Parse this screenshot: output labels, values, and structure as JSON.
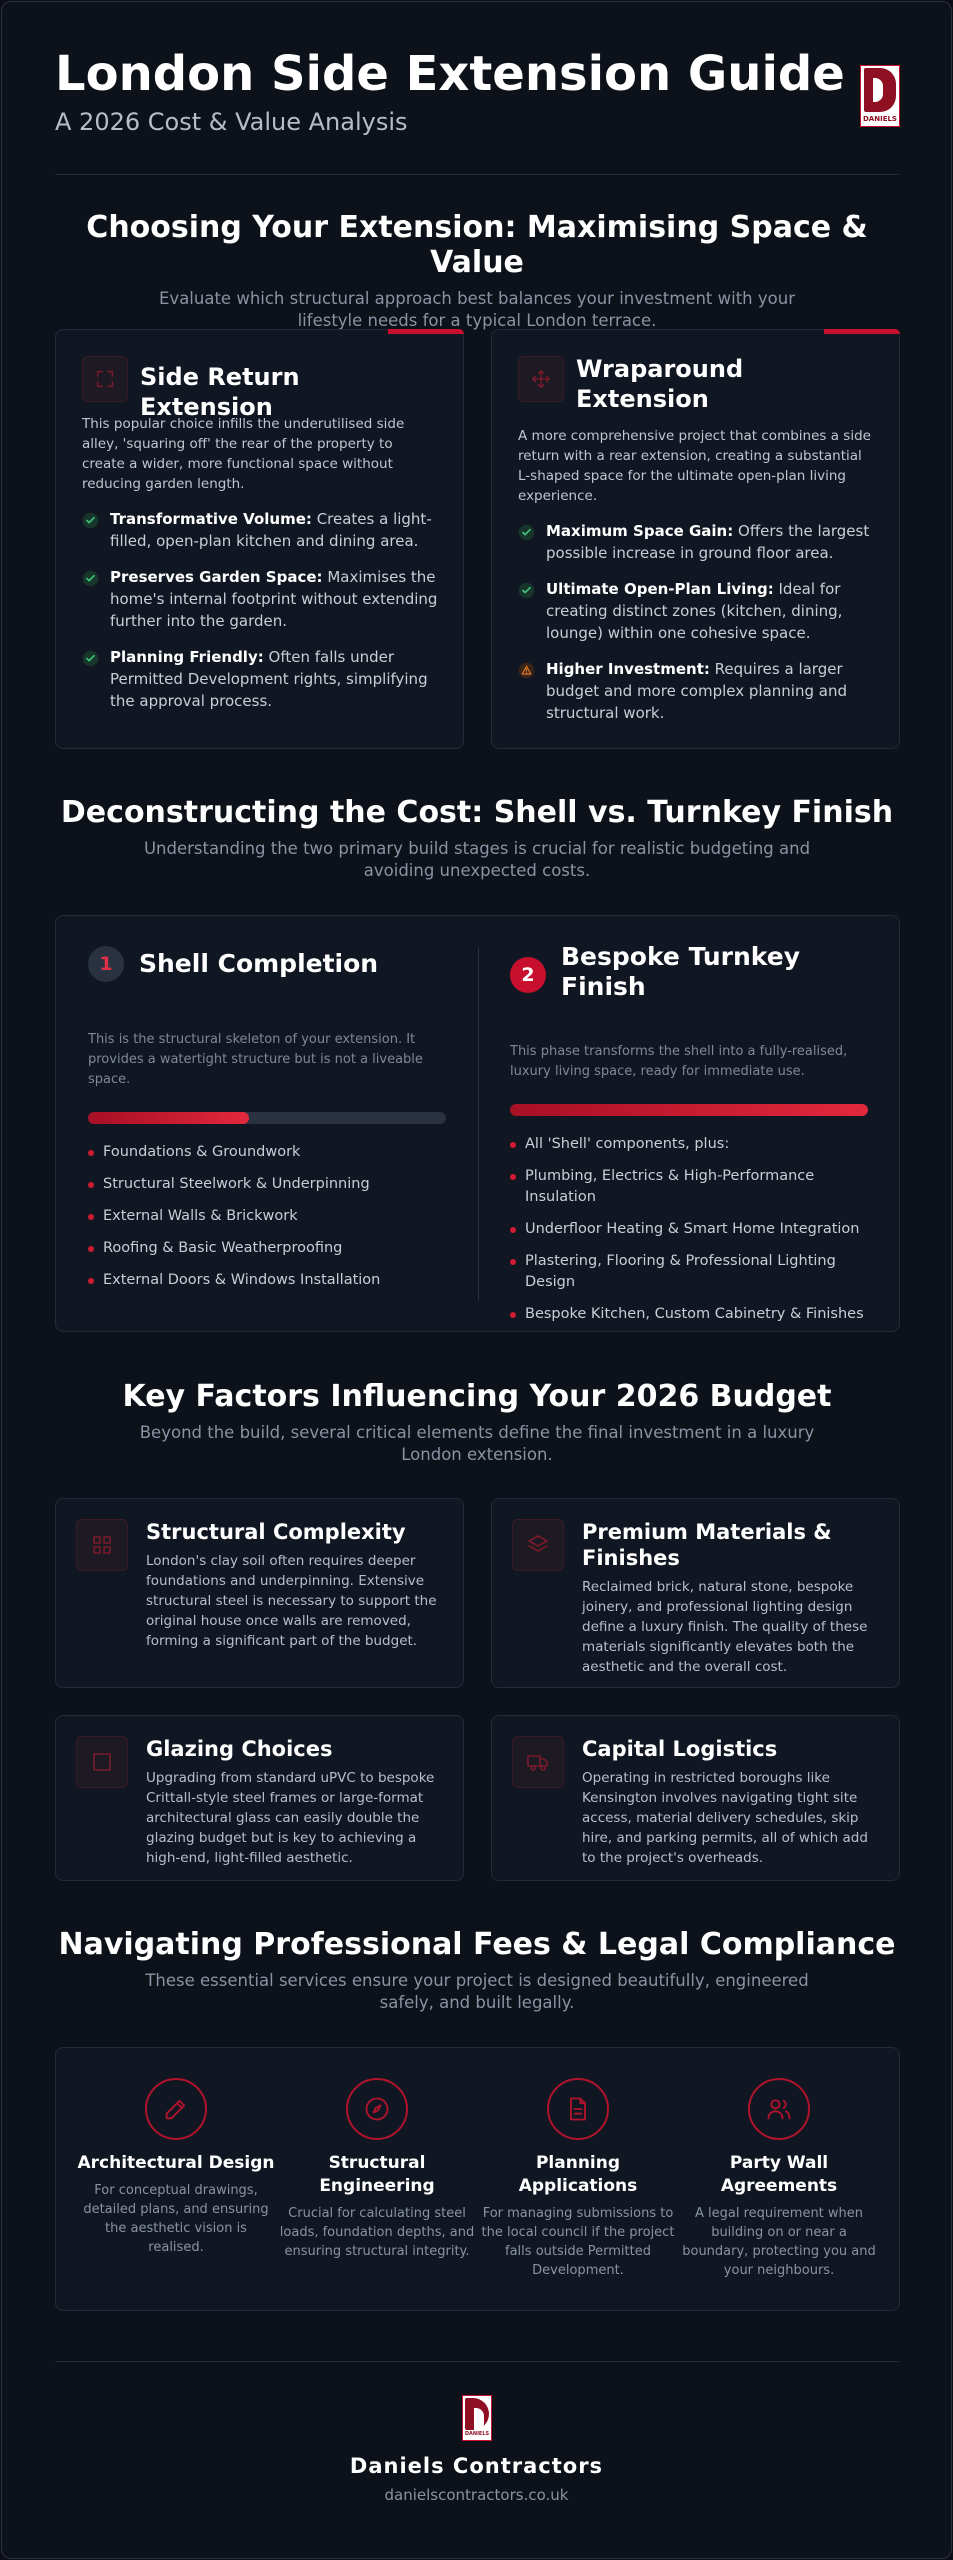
{
  "header": {
    "title": "London Side Extension Guide",
    "subtitle": "A 2026 Cost & Value Analysis",
    "logo": "DANIELS"
  },
  "extension": {
    "title": "Choosing Your Extension: Maximising Space & Value",
    "subtitle": "Evaluate which structural approach best balances your investment with your lifestyle needs for a typical London terrace.",
    "cards": [
      {
        "title": "Side Return Extension",
        "description": "This popular choice infills the underutilised side alley, 'squaring off' the rear of the property to create a wider, more functional space without reducing garden length.",
        "points": [
          {
            "icon": "check",
            "label": "Transformative Volume:",
            "text": "Creates a light-filled, open-plan kitchen and dining area."
          },
          {
            "icon": "check",
            "label": "Preserves Garden Space:",
            "text": "Maximises the home's internal footprint without extending further into the garden."
          },
          {
            "icon": "check",
            "label": "Planning Friendly:",
            "text": "Often falls under Permitted Development rights, simplifying the approval process."
          }
        ]
      },
      {
        "title": "Wraparound Extension",
        "description": "A more comprehensive project that combines a side return with a rear extension, creating a substantial L-shaped space for the ultimate open-plan living experience.",
        "points": [
          {
            "icon": "check",
            "label": "Maximum Space Gain:",
            "text": "Offers the largest possible increase in ground floor area."
          },
          {
            "icon": "check",
            "label": "Ultimate Open-Plan Living:",
            "text": "Ideal for creating distinct zones (kitchen, dining, lounge) within one cohesive space."
          },
          {
            "icon": "warning",
            "label": "Higher Investment:",
            "text": "Requires a larger budget and more complex planning and structural work."
          }
        ]
      }
    ]
  },
  "cost": {
    "title": "Deconstructing the Cost: Shell vs. Turnkey Finish",
    "subtitle": "Understanding the two primary build stages is crucial for realistic budgeting and avoiding unexpected costs.",
    "stages": [
      {
        "number": "1",
        "title": "Shell Completion",
        "description": "This is the structural skeleton of your extension. It provides a watertight structure but is not a liveable space.",
        "items": [
          "Foundations & Groundwork",
          "Structural Steelwork & Underpinning",
          "External Walls & Brickwork",
          "Roofing & Basic Weatherproofing",
          "External Doors & Windows Installation"
        ]
      },
      {
        "number": "2",
        "title": "Bespoke Turnkey Finish",
        "description": "This phase transforms the shell into a fully-realised, luxury living space, ready for immediate use.",
        "items": [
          "All 'Shell' components, plus:",
          "Plumbing, Electrics & High-Performance Insulation",
          "Underfloor Heating & Smart Home Integration",
          "Plastering, Flooring & Professional Lighting Design",
          "Bespoke Kitchen, Custom Cabinetry & Finishes"
        ]
      }
    ]
  },
  "factors": {
    "title": "Key Factors Influencing Your 2026 Budget",
    "subtitle": "Beyond the build, several critical elements define the final investment in a luxury London extension.",
    "items": [
      {
        "title": "Structural Complexity",
        "text": "London's clay soil often requires deeper foundations and underpinning. Extensive structural steel is necessary to support the original house once walls are removed, forming a significant part of the budget."
      },
      {
        "title": "Premium Materials & Finishes",
        "text": "Reclaimed brick, natural stone, bespoke joinery, and professional lighting design define a luxury finish. The quality of these materials significantly elevates both the aesthetic and the overall cost."
      },
      {
        "title": "Glazing Choices",
        "text": "Upgrading from standard uPVC to bespoke Crittall-style steel frames or large-format architectural glass can easily double the glazing budget but is key to achieving a high-end, light-filled aesthetic."
      },
      {
        "title": "Capital Logistics",
        "text": "Operating in restricted boroughs like Kensington involves navigating tight site access, material delivery schedules, skip hire, and parking permits, all of which add to the project's overheads."
      }
    ]
  },
  "fees": {
    "title": "Navigating Professional Fees & Legal Compliance",
    "subtitle": "These essential services ensure your project is designed beautifully, engineered safely, and built legally.",
    "items": [
      {
        "title": "Architectural Design",
        "text": "For conceptual drawings, detailed plans, and ensuring the aesthetic vision is realised."
      },
      {
        "title": "Structural Engineering",
        "text": "Crucial for calculating steel loads, foundation depths, and ensuring structural integrity."
      },
      {
        "title": "Planning Applications",
        "text": "For managing submissions to the local council if the project falls outside Permitted Development."
      },
      {
        "title": "Party Wall Agreements",
        "text": "A legal requirement when building on or near a boundary, protecting you and your neighbours."
      }
    ]
  },
  "footer": {
    "logo": "DANIELS",
    "name": "Daniels Contractors",
    "url": "danielscontractors.co.uk"
  }
}
